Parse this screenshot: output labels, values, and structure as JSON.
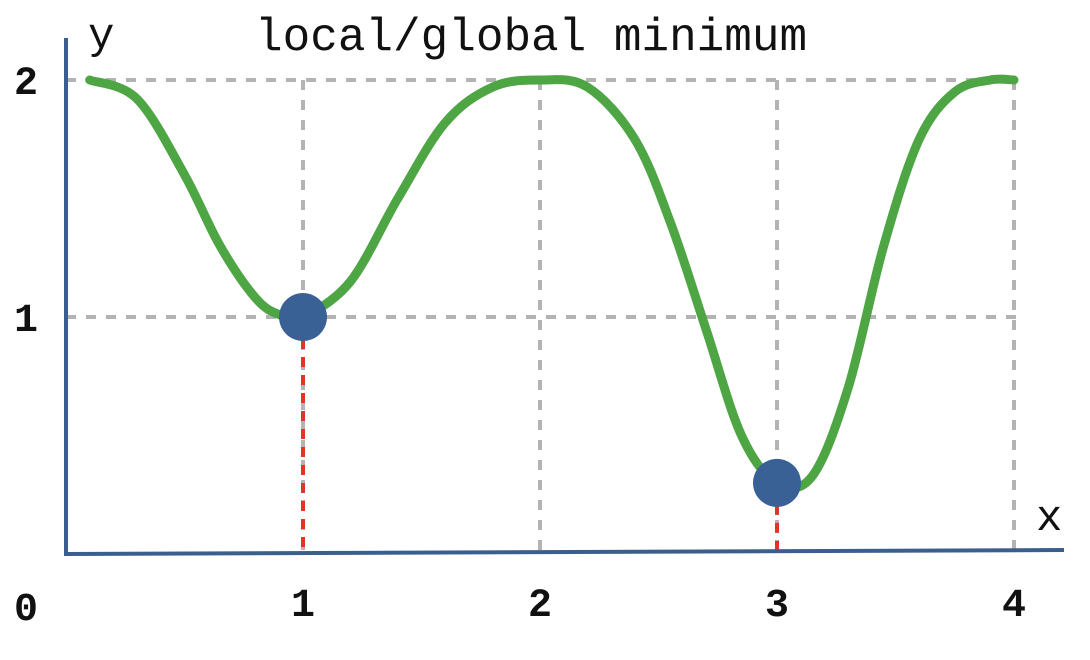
{
  "chart_data": {
    "type": "line",
    "title": "local/global minimum",
    "xlabel": "x",
    "ylabel": "y",
    "x_ticks": [
      "1",
      "2",
      "3",
      "4"
    ],
    "y_ticks": [
      "1",
      "2"
    ],
    "origin_label": "0",
    "xlim": [
      0,
      4.2
    ],
    "ylim": [
      0,
      2
    ],
    "grid": true,
    "series": [
      {
        "x": [
          0.1,
          0.3,
          0.5,
          0.65,
          0.8,
          0.9,
          1.0,
          1.2,
          1.4,
          1.6,
          1.8,
          2.0,
          2.2,
          2.4,
          2.55,
          2.7,
          2.85,
          3.0,
          3.15,
          3.3,
          3.45,
          3.6,
          3.75,
          3.9,
          4.0
        ],
        "y": [
          2.0,
          1.92,
          1.6,
          1.3,
          1.08,
          1.01,
          1.0,
          1.15,
          1.5,
          1.82,
          1.97,
          2.0,
          1.97,
          1.75,
          1.4,
          0.95,
          0.5,
          0.3,
          0.33,
          0.7,
          1.3,
          1.75,
          1.95,
          2.0,
          2.0
        ]
      }
    ],
    "minima": [
      {
        "label": "local minimum",
        "x": 1,
        "y": 1.0
      },
      {
        "label": "global minimum",
        "x": 3,
        "y": 0.3
      }
    ],
    "colors": {
      "curve": "#4ea543",
      "points": "#3a6196",
      "axes": "#3a5f8f",
      "grid": "#b3b3b3",
      "drop_lines": "#e0332a"
    }
  }
}
